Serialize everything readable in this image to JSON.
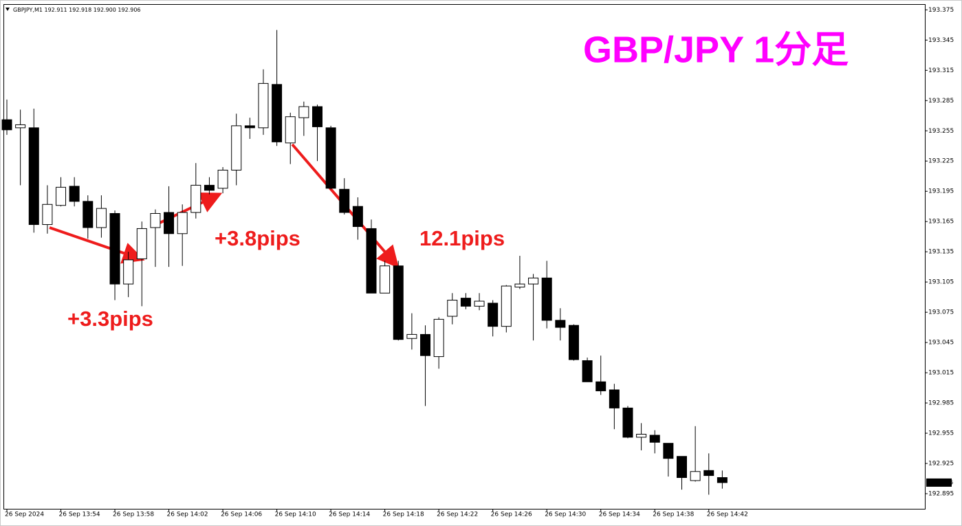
{
  "chart_data": {
    "type": "candlestick",
    "title": "GBP/JPY 1分足",
    "title_color": "#ff00ff",
    "symbol": "GBPJPY,M1",
    "header_labels": [
      "192.911",
      "192.918",
      "192.900",
      "192.906"
    ],
    "annotations": [
      "+3.3pips",
      "+3.8pips",
      "12.1pips"
    ],
    "annotation_color": "#ee1c1c",
    "up_color": "#ffffff",
    "down_color": "#000000",
    "outline_color": "#000000",
    "grid": false,
    "ylim": [
      192.88,
      193.38
    ],
    "yticks": [
      192.895,
      192.925,
      192.955,
      192.985,
      193.015,
      193.045,
      193.075,
      193.105,
      193.135,
      193.165,
      193.195,
      193.225,
      193.255,
      193.285,
      193.315,
      193.345,
      193.375
    ],
    "current_price": 192.906,
    "categories": [
      "26 Sep 2024",
      null,
      null,
      null,
      "26 Sep 13:54",
      null,
      null,
      null,
      "26 Sep 13:58",
      null,
      null,
      null,
      "26 Sep 14:02",
      null,
      null,
      null,
      "26 Sep 14:06",
      null,
      null,
      null,
      "26 Sep 14:10",
      null,
      null,
      null,
      "26 Sep 14:14",
      null,
      null,
      null,
      "26 Sep 14:18",
      null,
      null,
      null,
      "26 Sep 14:22",
      null,
      null,
      null,
      "26 Sep 14:26",
      null,
      null,
      null,
      "26 Sep 14:30",
      null,
      null,
      null,
      "26 Sep 14:34",
      null,
      null,
      null,
      "26 Sep 14:38",
      null,
      null,
      null,
      "26 Sep 14:42",
      null
    ],
    "ohlc": [
      [
        193.266,
        193.286,
        193.251,
        193.256
      ],
      [
        193.258,
        193.276,
        193.201,
        193.261
      ],
      [
        193.258,
        193.277,
        193.154,
        193.162
      ],
      [
        193.162,
        193.201,
        193.153,
        193.182
      ],
      [
        193.181,
        193.209,
        193.18,
        193.199
      ],
      [
        193.2,
        193.209,
        193.18,
        193.185
      ],
      [
        193.185,
        193.191,
        193.148,
        193.159
      ],
      [
        193.159,
        193.191,
        193.149,
        193.178
      ],
      [
        193.173,
        193.176,
        193.087,
        193.103
      ],
      [
        193.103,
        193.135,
        193.09,
        193.127
      ],
      [
        193.128,
        193.165,
        193.081,
        193.158
      ],
      [
        193.159,
        193.177,
        193.12,
        193.173
      ],
      [
        193.174,
        193.2,
        193.12,
        193.153
      ],
      [
        193.153,
        193.182,
        193.121,
        193.174
      ],
      [
        193.174,
        193.223,
        193.168,
        193.201
      ],
      [
        193.201,
        193.209,
        193.192,
        193.196
      ],
      [
        193.198,
        193.219,
        193.193,
        193.216
      ],
      [
        193.216,
        193.272,
        193.201,
        193.26
      ],
      [
        193.26,
        193.268,
        193.247,
        193.258
      ],
      [
        193.258,
        193.316,
        193.251,
        193.302
      ],
      [
        193.301,
        193.355,
        193.24,
        193.244
      ],
      [
        193.243,
        193.273,
        193.222,
        193.269
      ],
      [
        193.268,
        193.284,
        193.25,
        193.279
      ],
      [
        193.279,
        193.281,
        193.225,
        193.259
      ],
      [
        193.258,
        193.26,
        193.197,
        193.198
      ],
      [
        193.197,
        193.208,
        193.172,
        193.174
      ],
      [
        193.18,
        193.189,
        193.147,
        193.16
      ],
      [
        193.158,
        193.167,
        193.094,
        193.094
      ],
      [
        193.094,
        193.126,
        193.094,
        193.121
      ],
      [
        193.121,
        193.126,
        193.047,
        193.048
      ],
      [
        193.049,
        193.074,
        193.038,
        193.053
      ],
      [
        193.053,
        193.062,
        192.982,
        193.032
      ],
      [
        193.031,
        193.07,
        193.019,
        193.068
      ],
      [
        193.071,
        193.094,
        193.063,
        193.087
      ],
      [
        193.089,
        193.094,
        193.078,
        193.081
      ],
      [
        193.081,
        193.094,
        193.077,
        193.086
      ],
      [
        193.084,
        193.087,
        193.051,
        193.061
      ],
      [
        193.061,
        193.102,
        193.055,
        193.101
      ],
      [
        193.1,
        193.131,
        193.098,
        193.103
      ],
      [
        193.103,
        193.113,
        193.047,
        193.109
      ],
      [
        193.109,
        193.126,
        193.059,
        193.067
      ],
      [
        193.067,
        193.079,
        193.047,
        193.06
      ],
      [
        193.062,
        193.063,
        193.027,
        193.028
      ],
      [
        193.027,
        193.03,
        193.006,
        193.006
      ],
      [
        193.006,
        193.032,
        192.993,
        192.997
      ],
      [
        192.998,
        193.004,
        192.959,
        192.98
      ],
      [
        192.98,
        192.982,
        192.95,
        192.951
      ],
      [
        192.951,
        192.965,
        192.938,
        192.954
      ],
      [
        192.953,
        192.958,
        192.935,
        192.946
      ],
      [
        192.945,
        192.945,
        192.912,
        192.93
      ],
      [
        192.932,
        192.932,
        192.899,
        192.911
      ],
      [
        192.908,
        192.962,
        192.907,
        192.917
      ],
      [
        192.918,
        192.935,
        192.894,
        192.913
      ],
      [
        192.911,
        192.918,
        192.9,
        192.906
      ]
    ]
  }
}
